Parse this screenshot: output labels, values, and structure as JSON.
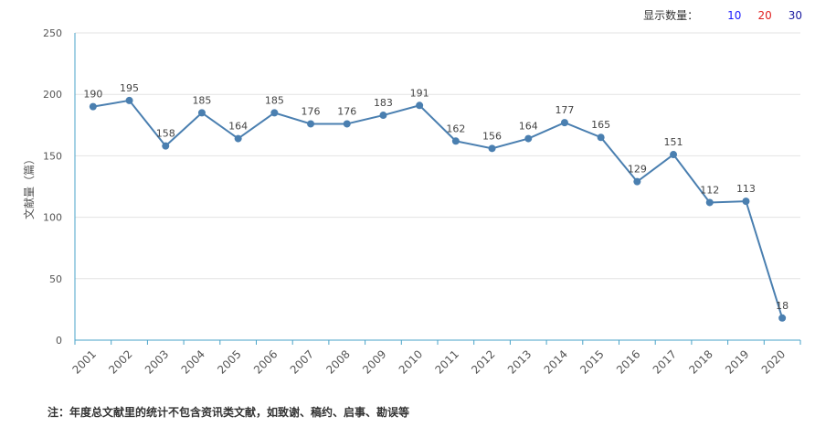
{
  "controls": {
    "label": "显示数量：",
    "options": [
      {
        "label": "10",
        "color": "#1a1aff"
      },
      {
        "label": "20",
        "color": "#e02020"
      },
      {
        "label": "30",
        "color": "#1a1aa0"
      }
    ]
  },
  "note": "注：年度总文献里的统计不包含资讯类文献，如致谢、稿约、启事、勘误等",
  "chart_data": {
    "type": "line",
    "ylabel": "文献量（篇）",
    "ylim": [
      0,
      250
    ],
    "yticks": [
      0,
      50,
      100,
      150,
      200,
      250
    ],
    "categories": [
      "2001",
      "2002",
      "2003",
      "2004",
      "2005",
      "2006",
      "2007",
      "2008",
      "2009",
      "2010",
      "2011",
      "2012",
      "2013",
      "2014",
      "2015",
      "2016",
      "2017",
      "2018",
      "2019",
      "2020"
    ],
    "series": [
      {
        "values": [
          190,
          195,
          158,
          185,
          164,
          185,
          176,
          176,
          183,
          191,
          162,
          156,
          164,
          177,
          165,
          129,
          151,
          112,
          113,
          18
        ],
        "color": "#4a7fb0"
      }
    ],
    "grid": true,
    "axis_color": "#4aa3c8"
  }
}
